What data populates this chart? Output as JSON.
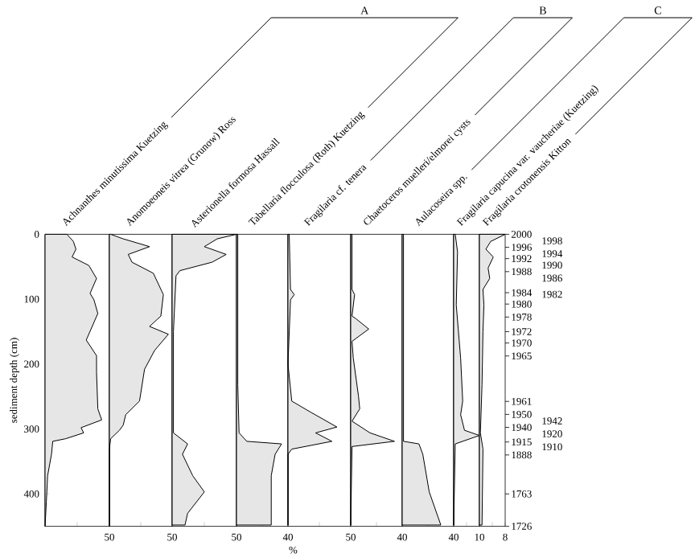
{
  "chart_data": [
    {
      "type": "area",
      "orientation": "horizontal",
      "title": "Achnanthes minutissima Kuetzing",
      "annotations": [
        "A"
      ],
      "ylabel": "sediment depth (cm)",
      "color": "#e6e6e6",
      "x": [
        0,
        11,
        23,
        35,
        48,
        68,
        91,
        101,
        122,
        163,
        187,
        212,
        269,
        286,
        298,
        306,
        315,
        319,
        339,
        372,
        413,
        450
      ],
      "values": [
        17,
        22,
        24,
        21,
        34,
        40,
        35,
        38,
        41,
        32,
        40,
        40,
        41,
        44,
        28,
        30,
        16,
        6,
        5,
        2,
        1,
        0
      ],
      "xlim": [
        0,
        50
      ],
      "xticks": [
        {
          "value": 25,
          "label": null
        },
        50
      ],
      "ylim": [
        450,
        0
      ],
      "yticks": [
        0,
        100,
        200,
        300,
        400
      ]
    },
    {
      "type": "area",
      "orientation": "horizontal",
      "title": "Anomoeoneis vitrea (Grunow) Ross",
      "tick_labels": "x",
      "color": "#e6e6e6",
      "x": [
        0,
        7,
        19,
        31,
        43,
        60,
        93,
        126,
        142,
        154,
        179,
        208,
        257,
        278,
        294,
        302,
        315,
        331,
        450
      ],
      "values": [
        1,
        11,
        32,
        15,
        18,
        35,
        43,
        41,
        32,
        47,
        36,
        28,
        24,
        13,
        11,
        8,
        1,
        0,
        0
      ],
      "xlim": [
        0,
        50
      ],
      "xticks": [
        {
          "value": 25,
          "label": null
        },
        50
      ],
      "ylim": [
        450,
        0
      ]
    },
    {
      "type": "area",
      "orientation": "horizontal",
      "title": "Asterionella formosa Hassall",
      "tick_labels": "x",
      "color": "#e6e6e6",
      "x": [
        0,
        7,
        19,
        31,
        43,
        56,
        64,
        150,
        232,
        306,
        323,
        339,
        372,
        397,
        430,
        448
      ],
      "values": [
        50,
        35,
        25,
        42,
        31,
        6,
        3,
        1,
        1,
        1,
        12,
        8,
        16,
        25,
        12,
        10
      ],
      "xlim": [
        0,
        50
      ],
      "xticks": [
        {
          "value": 25,
          "label": null
        },
        50
      ],
      "ylim": [
        450,
        0
      ]
    },
    {
      "type": "area",
      "orientation": "horizontal",
      "title": "Tabellaria flocculosa (Roth) Kuetzing",
      "tick_labels": "x",
      "xlabel": "%",
      "color": "#e6e6e6",
      "x": [
        0,
        150,
        232,
        306,
        319,
        323,
        339,
        372,
        448
      ],
      "values": [
        1,
        1,
        1,
        2,
        8,
        35,
        30,
        27,
        27
      ],
      "xlim": [
        0,
        40
      ],
      "xticks": [
        {
          "value": 20,
          "label": null
        },
        40
      ],
      "ylim": [
        450,
        0
      ]
    },
    {
      "type": "area",
      "orientation": "horizontal",
      "title": "Fragilaria cf. tenera",
      "annotations": [
        "B"
      ],
      "tick_labels": "x",
      "color": "#e6e6e6",
      "x": [
        0,
        85,
        93,
        101,
        200,
        257,
        274,
        297,
        306,
        319,
        331,
        339,
        448
      ],
      "values": [
        1,
        2,
        5,
        2,
        0,
        3,
        18,
        39,
        22,
        35,
        3,
        0,
        0
      ],
      "xlim": [
        0,
        50
      ],
      "xticks": [
        {
          "value": 25,
          "label": null
        },
        50
      ],
      "ylim": [
        450,
        0
      ]
    },
    {
      "type": "area",
      "orientation": "horizontal",
      "title": "Chaetoceros muelleri/elmorei cysts",
      "tick_labels": "x",
      "color": "#e6e6e6",
      "x": [
        0,
        85,
        93,
        126,
        130,
        146,
        165,
        191,
        249,
        269,
        288,
        306,
        319,
        327,
        448
      ],
      "values": [
        1,
        1,
        3,
        1,
        4,
        14,
        1,
        2,
        6,
        7,
        1,
        15,
        34,
        1,
        0
      ],
      "xlim": [
        0,
        40
      ],
      "xticks": [
        {
          "value": 20,
          "label": null
        },
        40
      ],
      "ylim": [
        450,
        0
      ]
    },
    {
      "type": "area",
      "orientation": "horizontal",
      "title": "Aulacoseira spp.",
      "annotations": [
        "C"
      ],
      "tick_labels": "x",
      "color": "#e6e6e6",
      "x": [
        0,
        232,
        319,
        323,
        339,
        397,
        448
      ],
      "values": [
        1,
        1,
        1,
        13,
        16,
        21,
        30
      ],
      "xlim": [
        0,
        40
      ],
      "xticks": [
        {
          "value": 20,
          "label": null
        },
        40
      ],
      "ylim": [
        450,
        0
      ]
    },
    {
      "type": "area",
      "orientation": "horizontal",
      "title": "Fragilaria capucina var. vaucheriae (Kuetzing)",
      "tick_labels": "x",
      "color": "#e6e6e6",
      "x": [
        0,
        27,
        109,
        191,
        257,
        278,
        302,
        310,
        323,
        448
      ],
      "values": [
        0.6,
        1.5,
        1,
        2.7,
        3.5,
        2.7,
        4.2,
        10,
        0.6,
        0
      ],
      "xlim": [
        0,
        10
      ],
      "xticks": [
        {
          "value": 5,
          "label": null
        },
        10
      ],
      "ylim": [
        450,
        0
      ]
    },
    {
      "type": "area",
      "orientation": "horizontal",
      "title": "Fragilaria crotonensis Kitton",
      "tick_labels": "x",
      "color": "#e6e6e6",
      "x": [
        0,
        11,
        23,
        35,
        52,
        68,
        85,
        109,
        150,
        232,
        306,
        331,
        448
      ],
      "values": [
        8,
        3.5,
        2,
        4.3,
        2.7,
        3.2,
        1.1,
        1.4,
        1.1,
        0.8,
        0.3,
        1.1,
        0.8
      ],
      "xlim": [
        0,
        8
      ],
      "xticks": [
        {
          "value": 4,
          "label": null
        },
        8
      ],
      "ylim": [
        450,
        0
      ],
      "y2_categories": [
        "2000",
        null,
        null,
        null,
        "1998",
        null,
        null,
        null,
        "1996",
        null,
        null,
        null,
        "1994",
        null,
        null,
        "1992",
        null,
        null,
        null,
        "1990",
        null,
        null,
        null,
        "1988",
        null,
        null,
        null,
        "1986",
        null,
        null,
        null,
        null,
        null,
        null,
        null,
        null,
        "1984",
        "1982",
        null,
        null,
        null,
        null,
        null,
        "1980",
        null,
        null,
        null,
        null,
        null,
        null,
        null,
        "1978",
        null,
        null,
        null,
        null,
        null,
        null,
        null,
        null,
        "1972",
        null,
        null,
        null,
        null,
        null,
        null,
        "1970",
        null,
        null,
        null,
        null,
        null,
        null,
        null,
        "1965",
        null,
        null,
        null,
        null,
        null,
        null,
        null,
        null,
        null,
        null,
        null,
        null,
        null,
        null,
        null,
        null,
        null,
        null,
        null,
        null,
        null,
        null,
        null,
        null,
        null,
        null,
        null,
        "1961",
        null,
        null,
        null,
        null,
        null,
        null,
        null,
        "1950",
        null,
        null,
        null,
        "1942",
        null,
        null,
        null,
        "1940",
        null,
        null,
        null,
        "1920",
        null,
        null,
        null,
        null,
        "1915",
        null,
        null,
        "1910",
        null,
        null,
        null,
        null,
        "1888",
        null,
        null,
        null,
        null,
        null,
        null,
        null,
        null,
        null,
        null,
        null,
        null,
        null,
        null,
        null,
        null,
        null,
        null,
        null,
        null,
        null,
        null,
        null,
        "1763",
        null,
        null,
        null,
        null,
        null,
        null,
        null,
        null,
        null,
        null,
        null,
        null,
        null,
        null,
        null,
        null,
        null,
        null,
        null,
        "1726"
      ]
    }
  ]
}
